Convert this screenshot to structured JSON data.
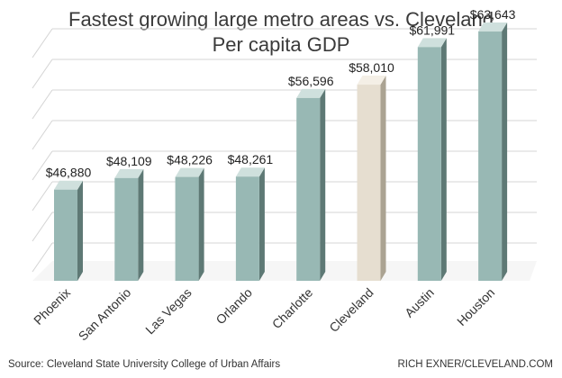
{
  "title": "Fastest growing large metro areas vs. Cleveland",
  "subtitle": "Per capita GDP",
  "source": "Source: Cleveland State University College of Urban Affairs",
  "credit": "RICH EXNER/CLEVELAND.COM",
  "chart_data": {
    "type": "bar",
    "categories": [
      "Phoenix",
      "San Antonio",
      "Las Vegas",
      "Orlando",
      "Charlotte",
      "Cleveland",
      "Austin",
      "Houston"
    ],
    "values": [
      46880,
      48109,
      48226,
      48261,
      56596,
      58010,
      61991,
      63643
    ],
    "value_labels": [
      "$46,880",
      "$48,109",
      "$48,226",
      "$48,261",
      "$56,596",
      "$58,010",
      "$61,991",
      "$63,643"
    ],
    "highlight": "Cleveland",
    "grid": true,
    "three_d": true,
    "colors": {
      "bar_front": "#98b8b4",
      "bar_side": "#5e7975",
      "bar_top": "#cfe0dd",
      "highlight_front": "#e6ded0",
      "highlight_side": "#aba392",
      "highlight_top": "#f4efe6",
      "grid": "#d4d4d4",
      "floor": "#e4e4e4"
    }
  }
}
